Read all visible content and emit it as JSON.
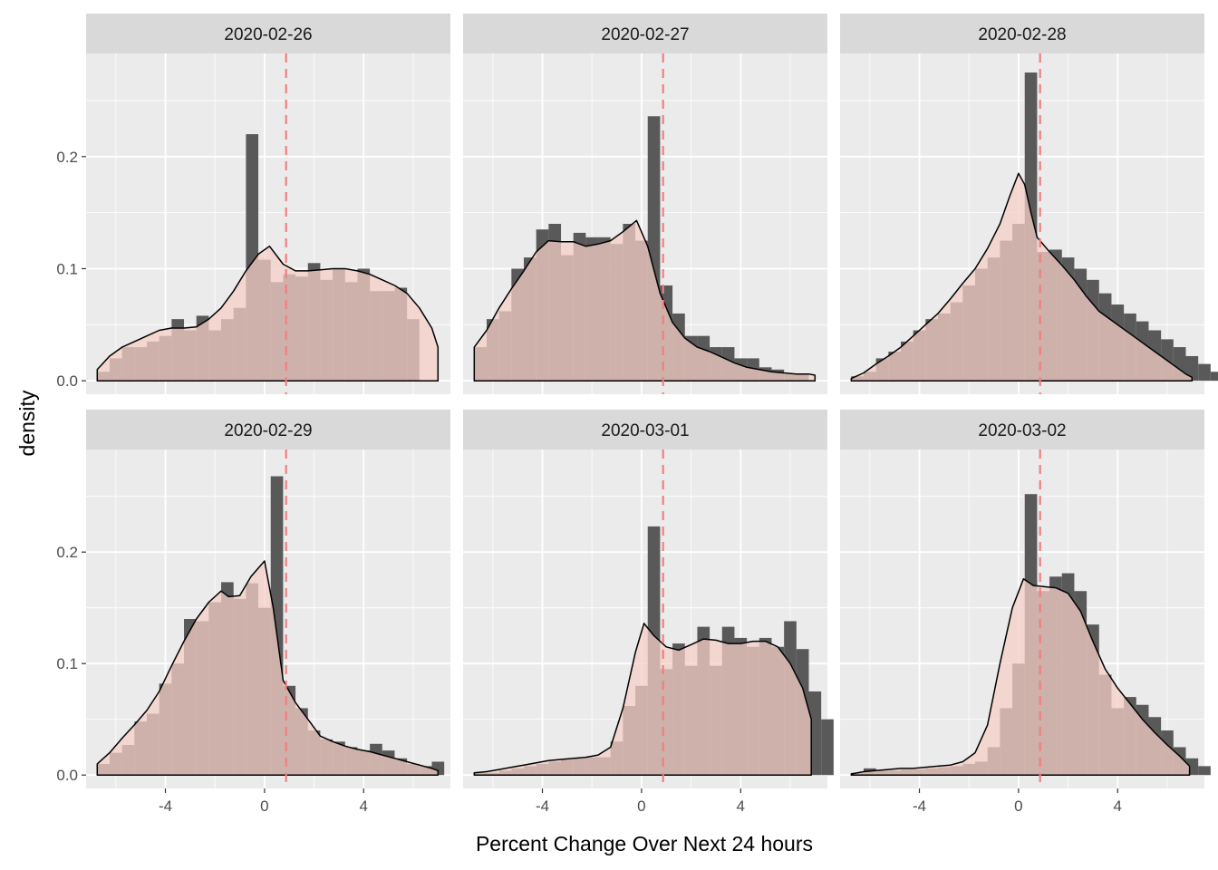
{
  "chart_data": {
    "type": "faceted-histogram-density",
    "xlabel": "Percent Change Over Next 24 hours",
    "ylabel": "density",
    "xlim": [
      -7.2,
      7.5
    ],
    "ylim": [
      -0.012,
      0.292
    ],
    "x_ticks": [
      -4,
      0,
      4
    ],
    "x_tick_labels": [
      "-4",
      "0",
      "4"
    ],
    "y_ticks": [
      0.0,
      0.1,
      0.2
    ],
    "y_tick_labels": [
      "0.0",
      "0.1",
      "0.2"
    ],
    "bin_start": -6.75,
    "bin_width": 0.5,
    "reference_line_x": 0.87,
    "colors": {
      "panel_bg": "#ebebeb",
      "strip_bg": "#d9d9d9",
      "grid": "#ffffff",
      "histogram_fill": "#595959",
      "density_fill": "#f4cfc5",
      "density_fill_opacity": 0.75,
      "density_line": "#000000",
      "reference_line": "#f08080"
    },
    "panels": [
      {
        "label": "2020-02-26",
        "hist": [
          0.008,
          0.02,
          0.03,
          0.03,
          0.035,
          0.04,
          0.055,
          0.045,
          0.058,
          0.045,
          0.055,
          0.065,
          0.22,
          0.108,
          0.088,
          0.095,
          0.093,
          0.105,
          0.09,
          0.1,
          0.088,
          0.1,
          0.08,
          0.08,
          0.083,
          0.055
        ],
        "density": [
          [
            -6.75,
            0.01
          ],
          [
            -6.25,
            0.022
          ],
          [
            -5.75,
            0.03
          ],
          [
            -5.25,
            0.035
          ],
          [
            -4.75,
            0.04
          ],
          [
            -4.25,
            0.045
          ],
          [
            -3.75,
            0.047
          ],
          [
            -3.25,
            0.047
          ],
          [
            -2.75,
            0.048
          ],
          [
            -2.25,
            0.055
          ],
          [
            -1.75,
            0.065
          ],
          [
            -1.25,
            0.08
          ],
          [
            -0.75,
            0.098
          ],
          [
            -0.25,
            0.113
          ],
          [
            0.2,
            0.12
          ],
          [
            0.75,
            0.104
          ],
          [
            1.25,
            0.098
          ],
          [
            1.75,
            0.098
          ],
          [
            2.25,
            0.099
          ],
          [
            2.75,
            0.1
          ],
          [
            3.25,
            0.1
          ],
          [
            3.75,
            0.098
          ],
          [
            4.25,
            0.095
          ],
          [
            4.75,
            0.09
          ],
          [
            5.25,
            0.085
          ],
          [
            5.75,
            0.078
          ],
          [
            6.25,
            0.065
          ],
          [
            6.75,
            0.047
          ],
          [
            7.0,
            0.03
          ]
        ]
      },
      {
        "label": "2020-02-27",
        "hist": [
          0.03,
          0.055,
          0.062,
          0.1,
          0.11,
          0.135,
          0.14,
          0.112,
          0.132,
          0.128,
          0.128,
          0.122,
          0.14,
          0.125,
          0.236,
          0.085,
          0.06,
          0.04,
          0.04,
          0.03,
          0.03,
          0.02,
          0.02,
          0.012,
          0.01,
          0.006,
          0.006
        ],
        "density": [
          [
            -6.75,
            0.03
          ],
          [
            -6.25,
            0.045
          ],
          [
            -5.75,
            0.065
          ],
          [
            -5.25,
            0.082
          ],
          [
            -4.75,
            0.098
          ],
          [
            -4.25,
            0.115
          ],
          [
            -3.75,
            0.125
          ],
          [
            -3.25,
            0.124
          ],
          [
            -2.75,
            0.124
          ],
          [
            -2.25,
            0.12
          ],
          [
            -1.75,
            0.122
          ],
          [
            -1.25,
            0.125
          ],
          [
            -0.75,
            0.133
          ],
          [
            -0.2,
            0.143
          ],
          [
            0.25,
            0.12
          ],
          [
            0.75,
            0.078
          ],
          [
            1.25,
            0.052
          ],
          [
            1.75,
            0.038
          ],
          [
            2.25,
            0.03
          ],
          [
            2.75,
            0.026
          ],
          [
            3.25,
            0.021
          ],
          [
            3.75,
            0.016
          ],
          [
            4.25,
            0.012
          ],
          [
            4.75,
            0.01
          ],
          [
            5.25,
            0.008
          ],
          [
            5.75,
            0.007
          ],
          [
            6.25,
            0.006
          ],
          [
            6.75,
            0.006
          ],
          [
            7.0,
            0.005
          ]
        ]
      },
      {
        "label": "2020-02-28",
        "hist": [
          0.004,
          0.008,
          0.02,
          0.026,
          0.035,
          0.045,
          0.055,
          0.06,
          0.07,
          0.085,
          0.1,
          0.11,
          0.125,
          0.14,
          0.275,
          0.115,
          0.117,
          0.11,
          0.1,
          0.09,
          0.078,
          0.068,
          0.06,
          0.053,
          0.045,
          0.037,
          0.03,
          0.022,
          0.015,
          0.008
        ],
        "density": [
          [
            -6.75,
            0.002
          ],
          [
            -6.25,
            0.007
          ],
          [
            -5.75,
            0.015
          ],
          [
            -5.25,
            0.022
          ],
          [
            -4.75,
            0.03
          ],
          [
            -4.25,
            0.04
          ],
          [
            -3.75,
            0.05
          ],
          [
            -3.25,
            0.06
          ],
          [
            -2.75,
            0.073
          ],
          [
            -2.25,
            0.087
          ],
          [
            -1.75,
            0.1
          ],
          [
            -1.25,
            0.118
          ],
          [
            -0.75,
            0.14
          ],
          [
            -0.35,
            0.165
          ],
          [
            0.0,
            0.185
          ],
          [
            0.25,
            0.175
          ],
          [
            0.5,
            0.15
          ],
          [
            0.75,
            0.128
          ],
          [
            1.25,
            0.115
          ],
          [
            1.75,
            0.103
          ],
          [
            2.25,
            0.09
          ],
          [
            2.75,
            0.075
          ],
          [
            3.25,
            0.062
          ],
          [
            3.75,
            0.054
          ],
          [
            4.25,
            0.046
          ],
          [
            4.75,
            0.038
          ],
          [
            5.25,
            0.03
          ],
          [
            5.75,
            0.022
          ],
          [
            6.25,
            0.014
          ],
          [
            6.75,
            0.006
          ],
          [
            7.0,
            0.003
          ]
        ]
      },
      {
        "label": "2020-02-29",
        "hist": [
          0.01,
          0.02,
          0.027,
          0.048,
          0.055,
          0.082,
          0.1,
          0.14,
          0.138,
          0.155,
          0.173,
          0.158,
          0.172,
          0.15,
          0.268,
          0.08,
          0.06,
          0.04,
          0.032,
          0.03,
          0.025,
          0.022,
          0.028,
          0.022,
          0.015,
          0.01,
          0.008,
          0.012
        ],
        "density": [
          [
            -6.75,
            0.01
          ],
          [
            -6.25,
            0.02
          ],
          [
            -5.75,
            0.033
          ],
          [
            -5.25,
            0.045
          ],
          [
            -4.75,
            0.058
          ],
          [
            -4.25,
            0.075
          ],
          [
            -3.75,
            0.098
          ],
          [
            -3.25,
            0.12
          ],
          [
            -2.75,
            0.14
          ],
          [
            -2.25,
            0.155
          ],
          [
            -1.75,
            0.165
          ],
          [
            -1.45,
            0.16
          ],
          [
            -1.0,
            0.161
          ],
          [
            -0.55,
            0.178
          ],
          [
            0.0,
            0.192
          ],
          [
            0.35,
            0.15
          ],
          [
            0.75,
            0.085
          ],
          [
            1.25,
            0.065
          ],
          [
            1.75,
            0.05
          ],
          [
            2.25,
            0.035
          ],
          [
            2.75,
            0.03
          ],
          [
            3.25,
            0.026
          ],
          [
            3.75,
            0.023
          ],
          [
            4.25,
            0.021
          ],
          [
            4.75,
            0.018
          ],
          [
            5.25,
            0.015
          ],
          [
            5.75,
            0.012
          ],
          [
            6.25,
            0.009
          ],
          [
            6.75,
            0.006
          ],
          [
            7.0,
            0.004
          ]
        ]
      },
      {
        "label": "2020-03-01",
        "hist": [
          0.002,
          0.002,
          0.004,
          0.006,
          0.008,
          0.01,
          0.012,
          0.014,
          0.015,
          0.016,
          0.016,
          0.03,
          0.062,
          0.08,
          0.223,
          0.095,
          0.118,
          0.098,
          0.133,
          0.098,
          0.133,
          0.123,
          0.115,
          0.123,
          0.115,
          0.138,
          0.113,
          0.075,
          0.05
        ],
        "density": [
          [
            -6.75,
            0.002
          ],
          [
            -6.25,
            0.003
          ],
          [
            -5.75,
            0.005
          ],
          [
            -5.25,
            0.007
          ],
          [
            -4.75,
            0.009
          ],
          [
            -4.25,
            0.011
          ],
          [
            -3.75,
            0.013
          ],
          [
            -3.25,
            0.014
          ],
          [
            -2.75,
            0.015
          ],
          [
            -2.25,
            0.016
          ],
          [
            -1.75,
            0.018
          ],
          [
            -1.25,
            0.025
          ],
          [
            -0.75,
            0.06
          ],
          [
            -0.25,
            0.11
          ],
          [
            0.1,
            0.136
          ],
          [
            0.5,
            0.125
          ],
          [
            1.0,
            0.115
          ],
          [
            1.5,
            0.112
          ],
          [
            2.0,
            0.117
          ],
          [
            2.5,
            0.122
          ],
          [
            3.0,
            0.121
          ],
          [
            3.5,
            0.118
          ],
          [
            4.0,
            0.118
          ],
          [
            4.5,
            0.12
          ],
          [
            5.0,
            0.12
          ],
          [
            5.5,
            0.115
          ],
          [
            6.0,
            0.1
          ],
          [
            6.5,
            0.078
          ],
          [
            6.85,
            0.05
          ]
        ]
      },
      {
        "label": "2020-03-02",
        "hist": [
          0.002,
          0.006,
          0.004,
          0.004,
          0.005,
          0.005,
          0.006,
          0.007,
          0.008,
          0.01,
          0.012,
          0.025,
          0.06,
          0.1,
          0.252,
          0.165,
          0.178,
          0.181,
          0.165,
          0.135,
          0.09,
          0.06,
          0.07,
          0.063,
          0.052,
          0.04,
          0.025,
          0.015,
          0.008
        ],
        "density": [
          [
            -6.75,
            0.001
          ],
          [
            -6.25,
            0.003
          ],
          [
            -5.75,
            0.004
          ],
          [
            -5.25,
            0.005
          ],
          [
            -4.75,
            0.006
          ],
          [
            -4.25,
            0.006
          ],
          [
            -3.75,
            0.007
          ],
          [
            -3.25,
            0.008
          ],
          [
            -2.75,
            0.009
          ],
          [
            -2.25,
            0.012
          ],
          [
            -1.75,
            0.02
          ],
          [
            -1.25,
            0.045
          ],
          [
            -0.75,
            0.1
          ],
          [
            -0.25,
            0.15
          ],
          [
            0.2,
            0.176
          ],
          [
            0.6,
            0.17
          ],
          [
            1.0,
            0.169
          ],
          [
            1.5,
            0.168
          ],
          [
            2.0,
            0.163
          ],
          [
            2.5,
            0.147
          ],
          [
            3.0,
            0.12
          ],
          [
            3.5,
            0.095
          ],
          [
            4.0,
            0.078
          ],
          [
            4.5,
            0.064
          ],
          [
            5.0,
            0.05
          ],
          [
            5.5,
            0.038
          ],
          [
            6.0,
            0.027
          ],
          [
            6.5,
            0.017
          ],
          [
            6.9,
            0.008
          ]
        ]
      }
    ]
  }
}
